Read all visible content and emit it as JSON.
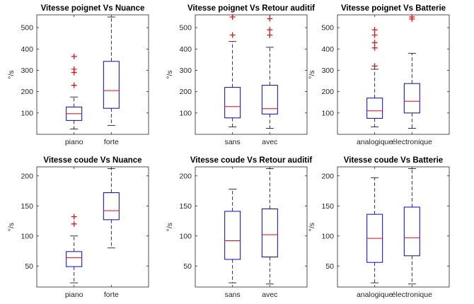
{
  "colors": {
    "box": "#0000ff",
    "median": "#ff0000",
    "outlier": "#ff0000",
    "whisker": "#000000",
    "axis": "#262626"
  },
  "chart_data": [
    {
      "type": "boxplot",
      "title": "Vitesse poignet Vs Nuance",
      "ylabel": "°/s",
      "xlabel": "",
      "ylim": [
        0,
        560
      ],
      "yticks": [
        100,
        200,
        300,
        400,
        500
      ],
      "grid": false,
      "categories": [
        "piano",
        "forte"
      ],
      "boxes": [
        {
          "whisker_low": 25,
          "q1": 65,
          "median": 97,
          "q3": 128,
          "whisker_high": 175,
          "outliers": [
            230,
            290,
            305,
            365
          ]
        },
        {
          "whisker_low": 42,
          "q1": 122,
          "median": 205,
          "q3": 342,
          "whisker_high": 550,
          "outliers": []
        }
      ]
    },
    {
      "type": "boxplot",
      "title": "Vitesse poignet Vs Retour auditif",
      "ylabel": "°/s",
      "xlabel": "",
      "ylim": [
        0,
        560
      ],
      "yticks": [
        100,
        200,
        300,
        400,
        500
      ],
      "grid": false,
      "categories": [
        "sans",
        "avec"
      ],
      "boxes": [
        {
          "whisker_low": 35,
          "q1": 77,
          "median": 130,
          "q3": 220,
          "whisker_high": 435,
          "outliers": [
            465,
            550
          ]
        },
        {
          "whisker_low": 28,
          "q1": 95,
          "median": 120,
          "q3": 230,
          "whisker_high": 408,
          "outliers": [
            465,
            490,
            542
          ]
        }
      ]
    },
    {
      "type": "boxplot",
      "title": "Vitesse poignet Vs Batterie",
      "ylabel": "°/s",
      "xlabel": "",
      "ylim": [
        0,
        560
      ],
      "yticks": [
        100,
        200,
        300,
        400,
        500
      ],
      "grid": false,
      "categories": [
        "analogique",
        "électronique"
      ],
      "boxes": [
        {
          "whisker_low": 35,
          "q1": 75,
          "median": 110,
          "q3": 170,
          "whisker_high": 305,
          "outliers": [
            320,
            405,
            430,
            465,
            490
          ]
        },
        {
          "whisker_low": 28,
          "q1": 100,
          "median": 155,
          "q3": 238,
          "whisker_high": 380,
          "outliers": [
            540,
            550
          ]
        }
      ]
    },
    {
      "type": "boxplot",
      "title": "Vitesse coude Vs Nuance",
      "ylabel": "°/s",
      "xlabel": "",
      "ylim": [
        15,
        215
      ],
      "yticks": [
        50,
        100,
        150,
        200
      ],
      "grid": false,
      "categories": [
        "piano",
        "forte"
      ],
      "boxes": [
        {
          "whisker_low": 22,
          "q1": 49,
          "median": 64,
          "q3": 74,
          "whisker_high": 100,
          "outliers": [
            120,
            132
          ]
        },
        {
          "whisker_low": 80,
          "q1": 127,
          "median": 142,
          "q3": 172,
          "whisker_high": 212,
          "outliers": []
        }
      ]
    },
    {
      "type": "boxplot",
      "title": "Vitesse coude Vs Retour auditif",
      "ylabel": "°/s",
      "xlabel": "",
      "ylim": [
        15,
        215
      ],
      "yticks": [
        50,
        100,
        150,
        200
      ],
      "grid": false,
      "categories": [
        "sans",
        "avec"
      ],
      "boxes": [
        {
          "whisker_low": 22,
          "q1": 61,
          "median": 92,
          "q3": 141,
          "whisker_high": 178,
          "outliers": []
        },
        {
          "whisker_low": 20,
          "q1": 65,
          "median": 102,
          "q3": 145,
          "whisker_high": 212,
          "outliers": []
        }
      ]
    },
    {
      "type": "boxplot",
      "title": "Vitesse coude Vs Batterie",
      "ylabel": "°/s",
      "xlabel": "",
      "ylim": [
        15,
        215
      ],
      "yticks": [
        50,
        100,
        150,
        200
      ],
      "grid": false,
      "categories": [
        "analogique",
        "électronique"
      ],
      "boxes": [
        {
          "whisker_low": 22,
          "q1": 56,
          "median": 96,
          "q3": 136,
          "whisker_high": 197,
          "outliers": []
        },
        {
          "whisker_low": 20,
          "q1": 67,
          "median": 97,
          "q3": 148,
          "whisker_high": 212,
          "outliers": []
        }
      ]
    }
  ]
}
